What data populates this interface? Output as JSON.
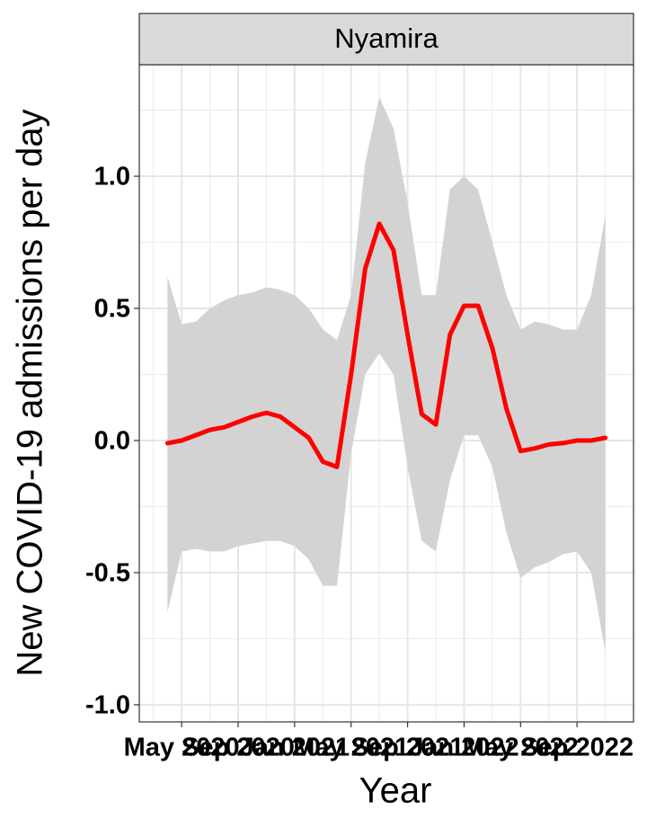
{
  "chart_data": {
    "type": "line",
    "strip_label": "Nyamira",
    "xlabel": "Year",
    "ylabel": "New COVID-19 admissions per day",
    "x": [
      "2020-04",
      "2020-05",
      "2020-06",
      "2020-07",
      "2020-08",
      "2020-09",
      "2020-10",
      "2020-11",
      "2020-12",
      "2021-01",
      "2021-02",
      "2021-03",
      "2021-04",
      "2021-05",
      "2021-06",
      "2021-07",
      "2021-08",
      "2021-09",
      "2021-10",
      "2021-11",
      "2021-12",
      "2022-01",
      "2022-02",
      "2022-03",
      "2022-04",
      "2022-05",
      "2022-06",
      "2022-07",
      "2022-08",
      "2022-09",
      "2022-10",
      "2022-11"
    ],
    "series": [
      {
        "color": "#ff0000",
        "band_color": "#d3d3d3",
        "values": [
          -0.01,
          0.0,
          0.02,
          0.04,
          0.05,
          0.07,
          0.09,
          0.105,
          0.09,
          0.05,
          0.01,
          -0.08,
          -0.1,
          0.25,
          0.65,
          0.82,
          0.72,
          0.4,
          0.1,
          0.06,
          0.4,
          0.51,
          0.51,
          0.35,
          0.12,
          -0.04,
          -0.03,
          -0.015,
          -0.01,
          0.0,
          0.0,
          0.01
        ],
        "upper": [
          0.62,
          0.44,
          0.45,
          0.5,
          0.53,
          0.55,
          0.56,
          0.58,
          0.57,
          0.55,
          0.5,
          0.42,
          0.38,
          0.55,
          1.05,
          1.3,
          1.18,
          0.9,
          0.55,
          0.55,
          0.95,
          1.0,
          0.95,
          0.75,
          0.55,
          0.42,
          0.45,
          0.44,
          0.42,
          0.42,
          0.55,
          0.85
        ],
        "lower": [
          -0.65,
          -0.42,
          -0.41,
          -0.42,
          -0.42,
          -0.4,
          -0.39,
          -0.38,
          -0.38,
          -0.4,
          -0.45,
          -0.55,
          -0.55,
          -0.05,
          0.25,
          0.33,
          0.25,
          -0.1,
          -0.38,
          -0.42,
          -0.15,
          0.02,
          0.02,
          -0.1,
          -0.35,
          -0.52,
          -0.48,
          -0.46,
          -0.43,
          -0.42,
          -0.5,
          -0.8
        ]
      }
    ],
    "xlim": [
      "2020-02",
      "2023-01"
    ],
    "xticks": [
      {
        "value": "2020-05",
        "label": "May 2020"
      },
      {
        "value": "2020-09",
        "label": "Sep 2020"
      },
      {
        "value": "2021-01",
        "label": "Jan 2021"
      },
      {
        "value": "2021-05",
        "label": "May 2021"
      },
      {
        "value": "2021-09",
        "label": "Sep 2021"
      },
      {
        "value": "2022-01",
        "label": "Jan 2022"
      },
      {
        "value": "2022-05",
        "label": "May 2022"
      },
      {
        "value": "2022-09",
        "label": "Sep 2022"
      }
    ],
    "x_minor_ticks": [
      "2020-03",
      "2020-07",
      "2020-11",
      "2021-03",
      "2021-07",
      "2021-11",
      "2022-03",
      "2022-07",
      "2022-11"
    ],
    "ylim": [
      -1.065,
      1.422
    ],
    "yticks": [
      {
        "value": -1,
        "label": "-1.0"
      },
      -0.5,
      {
        "value": 0,
        "label": "0.0"
      },
      0.5,
      {
        "value": 1,
        "label": "1.0"
      }
    ],
    "y_minor_ticks": [
      -0.75,
      -0.25,
      0.25,
      0.75,
      1.25
    ],
    "grid": true
  }
}
